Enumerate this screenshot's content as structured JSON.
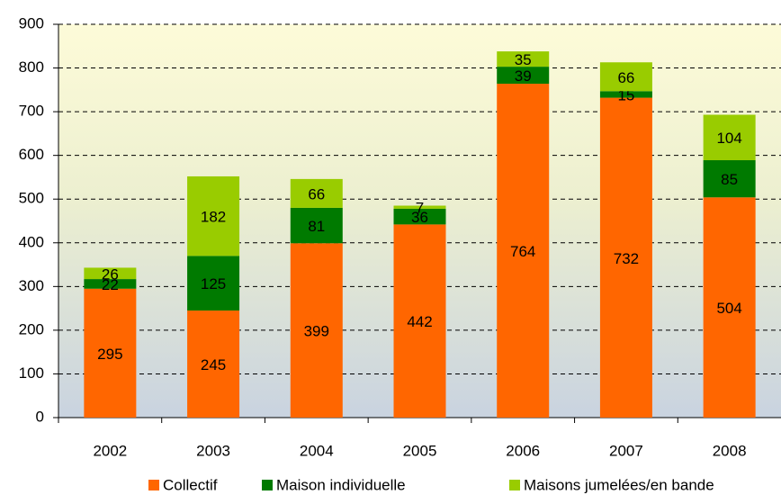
{
  "chart_data": {
    "type": "stacked_bar",
    "categories": [
      "2002",
      "2003",
      "2004",
      "2005",
      "2006",
      "2007",
      "2008"
    ],
    "series": [
      {
        "name": "Collectif",
        "color": "#ff6600",
        "values": [
          295,
          245,
          399,
          442,
          764,
          732,
          504
        ]
      },
      {
        "name": "Maison individuelle",
        "color": "#007a00",
        "values": [
          22,
          125,
          81,
          36,
          39,
          15,
          85
        ]
      },
      {
        "name": "Maisons jumelées/en bande",
        "color": "#99cc00",
        "values": [
          26,
          182,
          66,
          7,
          35,
          66,
          104
        ]
      }
    ],
    "ylim": [
      0,
      900
    ],
    "yticks": [
      0,
      100,
      200,
      300,
      400,
      500,
      600,
      700,
      800,
      900
    ],
    "grid": true
  }
}
